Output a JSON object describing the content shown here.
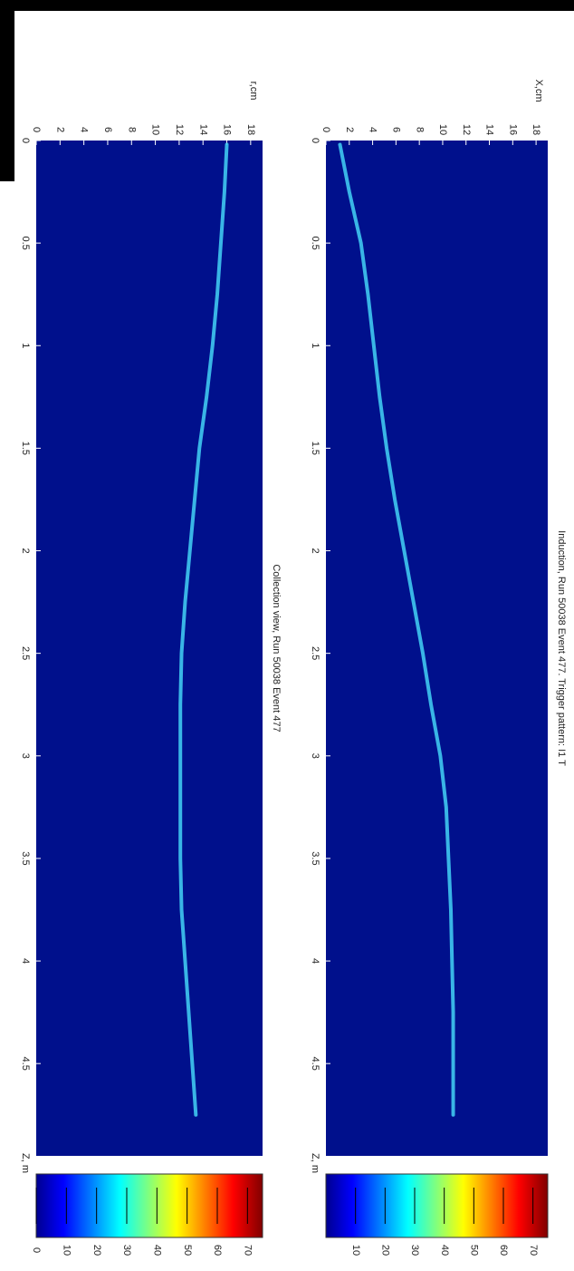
{
  "chart_data": [
    {
      "type": "line",
      "title": "Induction, Run 50038 Event 477. Trigger pattern: I1 T",
      "x_label": "Z, m",
      "y_label": "X,cm",
      "xlim": [
        0,
        4.95
      ],
      "ylim": [
        0,
        19
      ],
      "xticks": [
        0,
        0.5,
        1,
        1.5,
        2,
        2.5,
        3,
        3.5,
        4,
        4.5
      ],
      "yticks": [
        0,
        2,
        4,
        6,
        8,
        10,
        12,
        14,
        16,
        18
      ],
      "x": [
        0.02,
        0.25,
        0.5,
        0.75,
        1.0,
        1.25,
        1.5,
        1.75,
        2.0,
        2.25,
        2.5,
        2.75,
        3.0,
        3.25,
        3.5,
        3.75,
        4.0,
        4.25,
        4.5,
        4.75
      ],
      "values": [
        1.2,
        2.0,
        3.0,
        3.6,
        4.1,
        4.6,
        5.2,
        5.9,
        6.7,
        7.5,
        8.3,
        9.0,
        9.8,
        10.3,
        10.5,
        10.7,
        10.8,
        10.9,
        10.9,
        10.9
      ],
      "color": "#3fc8f0",
      "background": "#00108c",
      "colorbar": {
        "lim": [
          0,
          75
        ],
        "ticks": [
          10,
          20,
          30,
          40,
          50,
          60,
          70
        ]
      }
    },
    {
      "type": "line",
      "title": "Collection view, Run 50038 Event 477",
      "x_label": "Z, m",
      "y_label": "r,cm",
      "xlim": [
        0,
        4.95
      ],
      "ylim": [
        0,
        19
      ],
      "xticks": [
        0,
        0.5,
        1,
        1.5,
        2,
        2.5,
        3,
        3.5,
        4,
        4.5
      ],
      "yticks": [
        0,
        2,
        4,
        6,
        8,
        10,
        12,
        14,
        16,
        18
      ],
      "x": [
        0.02,
        0.25,
        0.5,
        0.75,
        1.0,
        1.25,
        1.5,
        1.75,
        2.0,
        2.25,
        2.5,
        2.75,
        3.0,
        3.25,
        3.5,
        3.75,
        4.0,
        4.25,
        4.5,
        4.75
      ],
      "values": [
        16.0,
        15.8,
        15.5,
        15.2,
        14.8,
        14.3,
        13.7,
        13.3,
        12.9,
        12.5,
        12.2,
        12.1,
        12.1,
        12.1,
        12.1,
        12.2,
        12.5,
        12.8,
        13.1,
        13.4
      ],
      "color": "#3fc8f0",
      "background": "#00108c",
      "colorbar": {
        "lim": [
          0,
          75
        ],
        "ticks": [
          0,
          10,
          20,
          30,
          40,
          50,
          60,
          70
        ]
      }
    }
  ]
}
